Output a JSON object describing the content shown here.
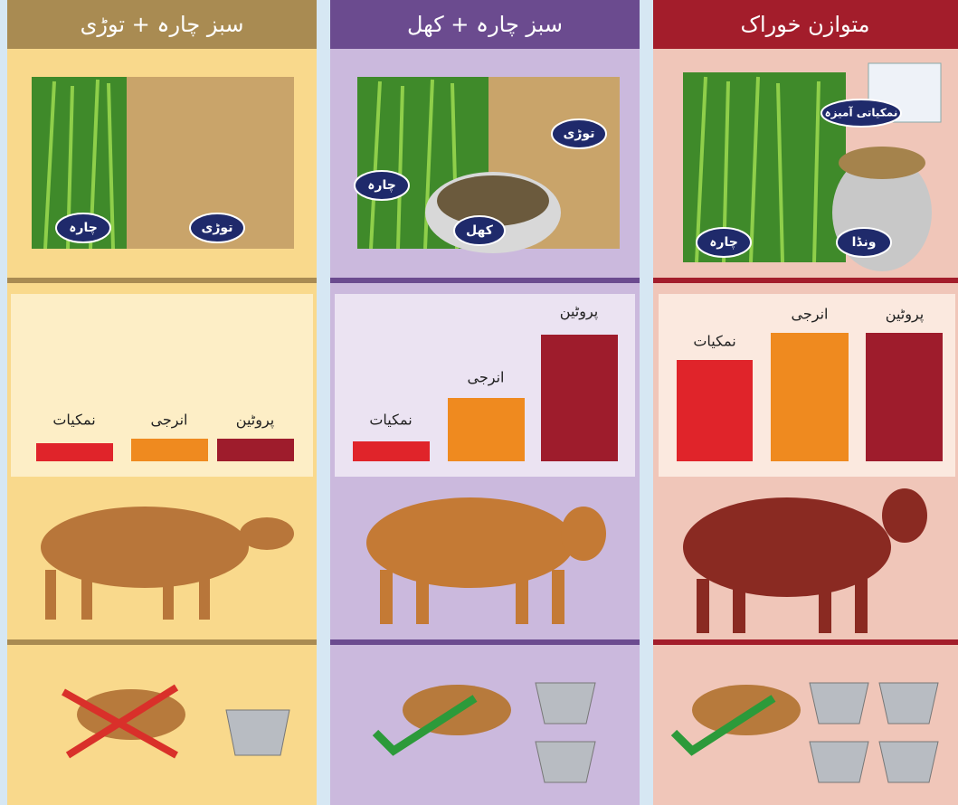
{
  "columns": [
    {
      "title": "سبز چارہ + توڑی",
      "image_labels": [
        "چارہ",
        "توڑی"
      ],
      "bar_labels": [
        "نمکیات",
        "انرجی",
        "پروٹین"
      ]
    },
    {
      "title": "سبز چارہ + کھل",
      "image_labels": [
        "توڑی",
        "چارہ",
        "کھل"
      ],
      "bar_labels": [
        "نمکیات",
        "انرجی",
        "پروٹین"
      ]
    },
    {
      "title": "متوازن خوراک",
      "image_labels": [
        "نمکیاتی آمیزہ",
        "چارہ",
        "ونڈا"
      ],
      "bar_labels": [
        "نمکیات",
        "انرجی",
        "پروٹین"
      ]
    }
  ]
}
